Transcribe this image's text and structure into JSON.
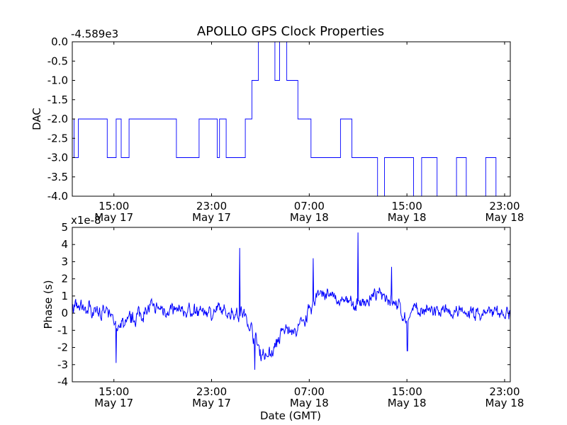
{
  "figure_title": "APOLLO GPS Clock Properties",
  "line_color": "#0000ff",
  "chart_data": [
    {
      "type": "line",
      "ylabel": "DAC",
      "xlabel": "",
      "offset_label": "-4.589e3",
      "ylim": [
        -4.0,
        0.0
      ],
      "xlim": [
        0.0,
        1.0
      ],
      "y_ticks": [
        {
          "value": 0.0,
          "label": "0.0"
        },
        {
          "value": -0.5,
          "label": "-0.5"
        },
        {
          "value": -1.0,
          "label": "-1.0"
        },
        {
          "value": -1.5,
          "label": "-1.5"
        },
        {
          "value": -2.0,
          "label": "-2.0"
        },
        {
          "value": -2.5,
          "label": "-2.5"
        },
        {
          "value": -3.0,
          "label": "-3.0"
        },
        {
          "value": -3.5,
          "label": "-3.5"
        },
        {
          "value": -4.0,
          "label": "-4.0"
        }
      ],
      "x_ticks": [
        {
          "value": 0.095,
          "time": "15:00",
          "date": "May 17"
        },
        {
          "value": 0.318,
          "time": "23:00",
          "date": "May 17"
        },
        {
          "value": 0.541,
          "time": "07:00",
          "date": "May 18"
        },
        {
          "value": 0.764,
          "time": "15:00",
          "date": "May 18"
        },
        {
          "value": 0.987,
          "time": "23:00",
          "date": "May 18"
        }
      ],
      "segments": [
        {
          "x0": 0.0,
          "x1": 0.395,
          "base": -2,
          "alt": -3
        },
        {
          "x0": 0.395,
          "x1": 0.41,
          "base": -2,
          "alt": -2
        },
        {
          "x0": 0.41,
          "x1": 0.425,
          "base": -1,
          "alt": -1
        },
        {
          "x0": 0.425,
          "x1": 0.515,
          "base": -1,
          "alt": 0
        },
        {
          "x0": 0.515,
          "x1": 0.545,
          "base": -2,
          "alt": -1
        },
        {
          "x0": 0.545,
          "x1": 0.65,
          "base": -2,
          "alt": -3
        },
        {
          "x0": 0.65,
          "x1": 0.69,
          "base": -3,
          "alt": -3
        },
        {
          "x0": 0.69,
          "x1": 1.0,
          "base": -3,
          "alt": -4
        }
      ]
    },
    {
      "type": "line",
      "ylabel": "Phase (s)",
      "xlabel": "Date (GMT)",
      "offset_label": "x1e-8",
      "ylim": [
        -4,
        5
      ],
      "xlim": [
        0.0,
        1.0
      ],
      "y_ticks": [
        {
          "value": 5,
          "label": "5"
        },
        {
          "value": 4,
          "label": "4"
        },
        {
          "value": 3,
          "label": "3"
        },
        {
          "value": 2,
          "label": "2"
        },
        {
          "value": 1,
          "label": "1"
        },
        {
          "value": 0,
          "label": "0"
        },
        {
          "value": -1,
          "label": "-1"
        },
        {
          "value": -2,
          "label": "-2"
        },
        {
          "value": -3,
          "label": "-3"
        },
        {
          "value": -4,
          "label": "-4"
        }
      ],
      "x_ticks": [
        {
          "value": 0.095,
          "time": "15:00",
          "date": "May 17"
        },
        {
          "value": 0.318,
          "time": "23:00",
          "date": "May 17"
        },
        {
          "value": 0.541,
          "time": "07:00",
          "date": "May 18"
        },
        {
          "value": 0.764,
          "time": "15:00",
          "date": "May 18"
        },
        {
          "value": 0.987,
          "time": "23:00",
          "date": "May 18"
        }
      ],
      "trend": [
        {
          "x": 0.0,
          "y": 0.3
        },
        {
          "x": 0.06,
          "y": 0.2
        },
        {
          "x": 0.09,
          "y": -0.3
        },
        {
          "x": 0.1,
          "y": -0.8
        },
        {
          "x": 0.13,
          "y": -0.4
        },
        {
          "x": 0.18,
          "y": 0.3
        },
        {
          "x": 0.25,
          "y": 0.1
        },
        {
          "x": 0.35,
          "y": 0.1
        },
        {
          "x": 0.39,
          "y": 0.0
        },
        {
          "x": 0.41,
          "y": -1.0
        },
        {
          "x": 0.43,
          "y": -2.3
        },
        {
          "x": 0.45,
          "y": -2.5
        },
        {
          "x": 0.47,
          "y": -1.6
        },
        {
          "x": 0.49,
          "y": -0.8
        },
        {
          "x": 0.51,
          "y": -1.2
        },
        {
          "x": 0.53,
          "y": -0.3
        },
        {
          "x": 0.55,
          "y": 0.4
        },
        {
          "x": 0.56,
          "y": 1.3
        },
        {
          "x": 0.6,
          "y": 0.8
        },
        {
          "x": 0.65,
          "y": 0.5
        },
        {
          "x": 0.68,
          "y": 0.8
        },
        {
          "x": 0.71,
          "y": 1.2
        },
        {
          "x": 0.74,
          "y": 0.6
        },
        {
          "x": 0.76,
          "y": -0.4
        },
        {
          "x": 0.78,
          "y": 0.2
        },
        {
          "x": 0.85,
          "y": 0.0
        },
        {
          "x": 0.9,
          "y": 0.0
        },
        {
          "x": 0.95,
          "y": 0.0
        },
        {
          "x": 1.0,
          "y": 0.0
        }
      ],
      "spikes": [
        {
          "x": 0.382,
          "y": 3.8
        },
        {
          "x": 0.55,
          "y": 3.2
        },
        {
          "x": 0.652,
          "y": 4.7
        },
        {
          "x": 0.1,
          "y": -2.9
        },
        {
          "x": 0.417,
          "y": -3.3
        },
        {
          "x": 0.765,
          "y": -2.2
        },
        {
          "x": 0.729,
          "y": 2.7
        }
      ],
      "noise_amplitude": 0.45,
      "samples": 900
    }
  ]
}
